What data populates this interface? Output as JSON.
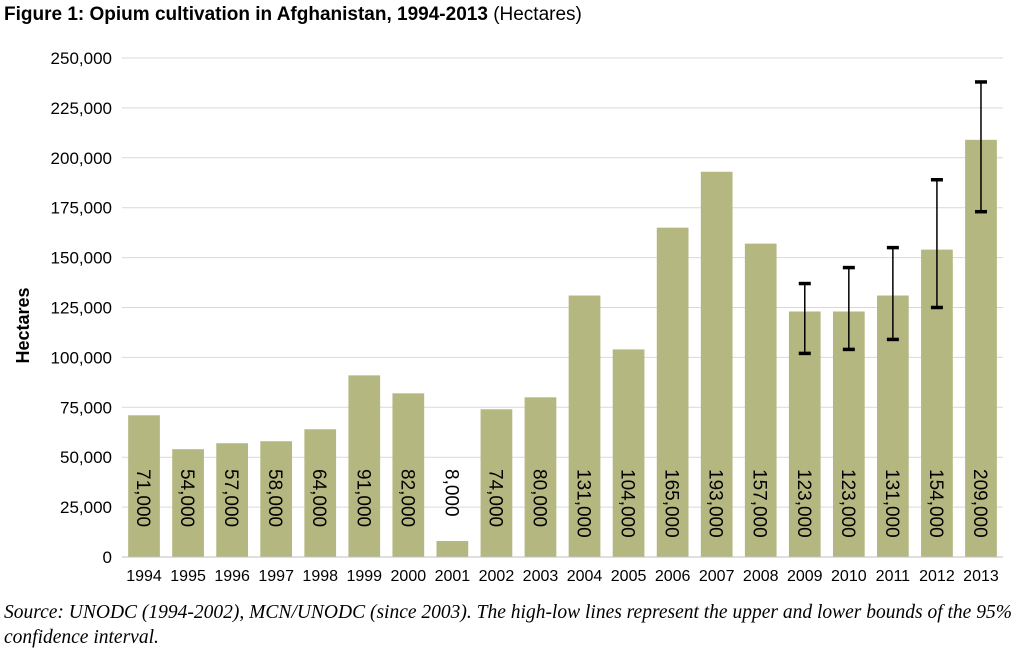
{
  "figure": {
    "title_bold": "Figure 1: Opium cultivation in Afghanistan, 1994-2013",
    "title_unit": "(Hectares)",
    "source_note": "Source: UNODC (1994-2002), MCN/UNODC (since 2003). The high-low lines represent the upper and lower bounds of the 95% confidence interval."
  },
  "chart_data": {
    "type": "bar",
    "ylabel": "Hectares",
    "xlabel": "",
    "ylim": [
      0,
      250000
    ],
    "y_ticks": [
      0,
      25000,
      50000,
      75000,
      100000,
      125000,
      150000,
      175000,
      200000,
      225000,
      250000
    ],
    "y_tick_labels": [
      "0",
      "25,000",
      "50,000",
      "75,000",
      "100,000",
      "125,000",
      "150,000",
      "175,000",
      "200,000",
      "225,000",
      "250,000"
    ],
    "grid": true,
    "legend": "none",
    "bar_color": "#b4b77f",
    "categories": [
      "1994",
      "1995",
      "1996",
      "1997",
      "1998",
      "1999",
      "2000",
      "2001",
      "2002",
      "2003",
      "2004",
      "2005",
      "2006",
      "2007",
      "2008",
      "2009",
      "2010",
      "2011",
      "2012",
      "2013"
    ],
    "values": [
      71000,
      54000,
      57000,
      58000,
      64000,
      91000,
      82000,
      8000,
      74000,
      80000,
      131000,
      104000,
      165000,
      193000,
      157000,
      123000,
      123000,
      131000,
      154000,
      209000
    ],
    "data_labels": [
      "71,000",
      "54,000",
      "57,000",
      "58,000",
      "64,000",
      "91,000",
      "82,000",
      "8,000",
      "74,000",
      "80,000",
      "131,000",
      "104,000",
      "165,000",
      "193,000",
      "157,000",
      "123,000",
      "123,000",
      "131,000",
      "154,000",
      "209,000"
    ],
    "confidence_intervals": [
      {
        "year": "2009",
        "low": 102000,
        "high": 137000
      },
      {
        "year": "2010",
        "low": 104000,
        "high": 145000
      },
      {
        "year": "2011",
        "low": 109000,
        "high": 155000
      },
      {
        "year": "2012",
        "low": 125000,
        "high": 189000
      },
      {
        "year": "2013",
        "low": 173000,
        "high": 238000
      }
    ]
  }
}
